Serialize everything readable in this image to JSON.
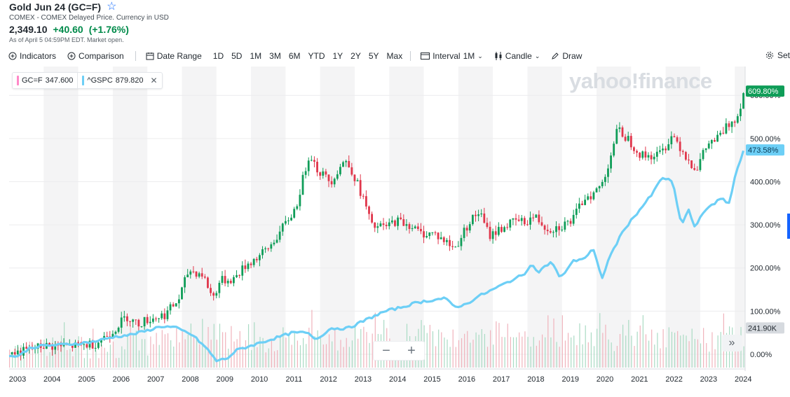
{
  "header": {
    "title": "Gold Jun 24 (GC=F)",
    "subtitle": "COMEX - COMEX Delayed Price. Currency in USD",
    "price": "2,349.10",
    "change": "+40.60",
    "change_pct": "(+1.76%)",
    "as_of": "As of April 5 04:59PM EDT. Market open."
  },
  "toolbar": {
    "indicators": "Indicators",
    "comparison": "Comparison",
    "date_range": "Date Range",
    "ranges": [
      "1D",
      "5D",
      "1M",
      "3M",
      "6M",
      "YTD",
      "1Y",
      "2Y",
      "5Y",
      "Max"
    ],
    "interval_label": "Interval",
    "interval_value": "1M",
    "chart_type": "Candle",
    "draw": "Draw",
    "settings": "Set"
  },
  "legend": [
    {
      "symbol": "GC=F",
      "value": "347.600",
      "color": "#ff88c8"
    },
    {
      "symbol": "^GSPC",
      "value": "879.820",
      "color": "#6dcff6"
    }
  ],
  "watermark": "yahoo!finance",
  "zoom": {
    "minus": "−",
    "plus": "+"
  },
  "scroll_glyph": "»",
  "colors": {
    "up": "#0f9d58",
    "down": "#e0364b",
    "gspc": "#6dcff6",
    "gold_label": "#0f9d58",
    "band": "#f4f4f5"
  },
  "chart_data": {
    "type": "line",
    "x_unit": "year",
    "years": [
      "2003",
      "2004",
      "2005",
      "2006",
      "2007",
      "2008",
      "2009",
      "2010",
      "2011",
      "2012",
      "2013",
      "2014",
      "2015",
      "2016",
      "2017",
      "2018",
      "2019",
      "2020",
      "2021",
      "2022",
      "2023",
      "2024"
    ],
    "y_ticks": [
      "0.00%",
      "100.00%",
      "200.00%",
      "300.00%",
      "400.00%",
      "500.00%",
      "600.00%"
    ],
    "ylim": [
      -10,
      630
    ],
    "series": [
      {
        "name": "GC=F",
        "style": "candle",
        "last_label": "609.80%",
        "points": [
          [
            2003.0,
            0
          ],
          [
            2003.5,
            8
          ],
          [
            2004.0,
            20
          ],
          [
            2004.5,
            18
          ],
          [
            2005.0,
            20
          ],
          [
            2005.5,
            25
          ],
          [
            2006.0,
            55
          ],
          [
            2006.4,
            88
          ],
          [
            2006.7,
            70
          ],
          [
            2007.0,
            80
          ],
          [
            2007.5,
            92
          ],
          [
            2007.9,
            125
          ],
          [
            2008.2,
            195
          ],
          [
            2008.6,
            185
          ],
          [
            2008.9,
            130
          ],
          [
            2009.1,
            170
          ],
          [
            2009.5,
            175
          ],
          [
            2009.9,
            210
          ],
          [
            2010.2,
            225
          ],
          [
            2010.5,
            245
          ],
          [
            2010.9,
            290
          ],
          [
            2011.3,
            340
          ],
          [
            2011.7,
            470
          ],
          [
            2011.9,
            430
          ],
          [
            2012.3,
            400
          ],
          [
            2012.7,
            450
          ],
          [
            2012.9,
            430
          ],
          [
            2013.3,
            350
          ],
          [
            2013.5,
            295
          ],
          [
            2013.9,
            295
          ],
          [
            2014.2,
            310
          ],
          [
            2014.6,
            300
          ],
          [
            2014.9,
            280
          ],
          [
            2015.3,
            280
          ],
          [
            2015.9,
            245
          ],
          [
            2016.3,
            305
          ],
          [
            2016.6,
            330
          ],
          [
            2016.9,
            275
          ],
          [
            2017.3,
            295
          ],
          [
            2017.7,
            310
          ],
          [
            2017.9,
            305
          ],
          [
            2018.2,
            320
          ],
          [
            2018.6,
            290
          ],
          [
            2018.9,
            295
          ],
          [
            2019.3,
            310
          ],
          [
            2019.7,
            370
          ],
          [
            2019.9,
            370
          ],
          [
            2020.2,
            400
          ],
          [
            2020.6,
            520
          ],
          [
            2020.9,
            500
          ],
          [
            2021.3,
            460
          ],
          [
            2021.7,
            460
          ],
          [
            2021.9,
            470
          ],
          [
            2022.2,
            510
          ],
          [
            2022.7,
            445
          ],
          [
            2022.9,
            430
          ],
          [
            2023.2,
            485
          ],
          [
            2023.5,
            500
          ],
          [
            2023.9,
            540
          ],
          [
            2024.1,
            555
          ],
          [
            2024.25,
            609.8
          ]
        ]
      },
      {
        "name": "^GSPC",
        "style": "line",
        "last_label": "473.58%",
        "points": [
          [
            2003.0,
            -5
          ],
          [
            2003.3,
            -3
          ],
          [
            2003.6,
            15
          ],
          [
            2004.0,
            20
          ],
          [
            2004.5,
            22
          ],
          [
            2005.0,
            25
          ],
          [
            2005.5,
            30
          ],
          [
            2006.0,
            40
          ],
          [
            2006.5,
            45
          ],
          [
            2007.0,
            55
          ],
          [
            2007.4,
            65
          ],
          [
            2007.8,
            62
          ],
          [
            2008.3,
            45
          ],
          [
            2008.7,
            15
          ],
          [
            2009.0,
            -15
          ],
          [
            2009.3,
            -10
          ],
          [
            2009.6,
            10
          ],
          [
            2010.0,
            20
          ],
          [
            2010.4,
            30
          ],
          [
            2010.8,
            40
          ],
          [
            2011.2,
            50
          ],
          [
            2011.6,
            50
          ],
          [
            2011.9,
            35
          ],
          [
            2012.3,
            60
          ],
          [
            2012.8,
            60
          ],
          [
            2013.2,
            75
          ],
          [
            2013.6,
            90
          ],
          [
            2013.9,
            100
          ],
          [
            2014.4,
            110
          ],
          [
            2014.8,
            120
          ],
          [
            2015.2,
            125
          ],
          [
            2015.6,
            130
          ],
          [
            2015.9,
            110
          ],
          [
            2016.2,
            115
          ],
          [
            2016.6,
            135
          ],
          [
            2017.0,
            150
          ],
          [
            2017.5,
            170
          ],
          [
            2017.9,
            185
          ],
          [
            2018.1,
            210
          ],
          [
            2018.3,
            190
          ],
          [
            2018.7,
            215
          ],
          [
            2018.95,
            175
          ],
          [
            2019.3,
            215
          ],
          [
            2019.7,
            225
          ],
          [
            2019.9,
            245
          ],
          [
            2020.15,
            175
          ],
          [
            2020.4,
            230
          ],
          [
            2020.8,
            290
          ],
          [
            2021.2,
            330
          ],
          [
            2021.6,
            370
          ],
          [
            2021.9,
            410
          ],
          [
            2022.2,
            400
          ],
          [
            2022.45,
            300
          ],
          [
            2022.7,
            340
          ],
          [
            2022.8,
            290
          ],
          [
            2023.2,
            340
          ],
          [
            2023.6,
            360
          ],
          [
            2023.85,
            350
          ],
          [
            2024.0,
            410
          ],
          [
            2024.25,
            473.58
          ]
        ]
      }
    ],
    "volume": {
      "last_label": "241.90K"
    }
  }
}
